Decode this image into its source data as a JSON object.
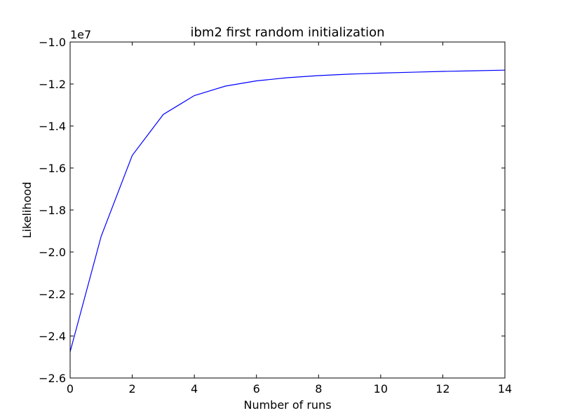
{
  "chart_data": {
    "type": "line",
    "title": "ibm2 first random initialization",
    "xlabel": "Number of runs",
    "ylabel": "Likelihood",
    "y_scale_label": "1e7",
    "xlim": [
      0,
      14
    ],
    "ylim": [
      -2.6,
      -1.0
    ],
    "x_ticks": [
      0,
      2,
      4,
      6,
      8,
      10,
      12,
      14
    ],
    "y_ticks": [
      -2.6,
      -2.4,
      -2.2,
      -2.0,
      -1.8,
      -1.6,
      -1.4,
      -1.2,
      -1.0
    ],
    "grid": false,
    "series": [
      {
        "color": "#0000ff",
        "x": [
          0,
          1,
          2,
          3,
          4,
          5,
          6,
          7,
          8,
          9,
          10,
          11,
          12,
          13,
          14
        ],
        "y": [
          -2.475,
          -1.925,
          -1.54,
          -1.345,
          -1.255,
          -1.21,
          -1.185,
          -1.17,
          -1.16,
          -1.153,
          -1.148,
          -1.144,
          -1.14,
          -1.137,
          -1.134
        ]
      }
    ]
  }
}
